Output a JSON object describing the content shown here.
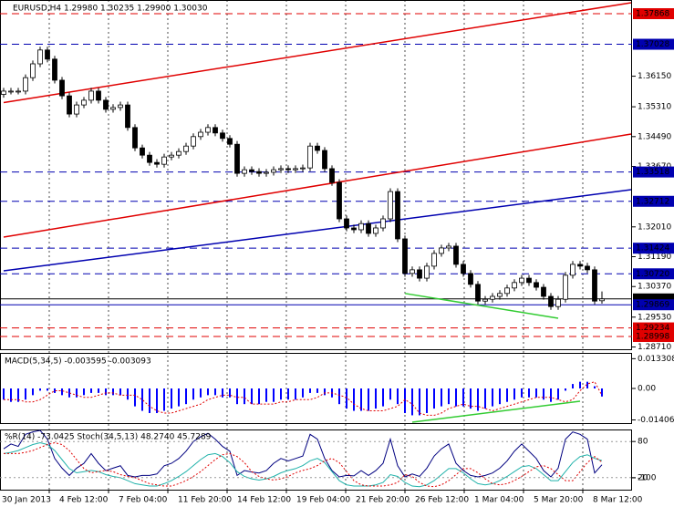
{
  "chart_data": [
    {
      "type": "candlestick",
      "title": "EURUSD,H4  1.29980 1.30235 1.29900 1.30030",
      "bull_color": "#ffffff",
      "bear_color": "#000000",
      "open": [
        1.3565,
        1.3574,
        1.3574,
        1.3574,
        1.3611,
        1.3649,
        1.3687,
        1.3662,
        1.3604,
        1.3561,
        1.3511,
        1.3536,
        1.3549,
        1.3574,
        1.3549,
        1.3524,
        1.3529,
        1.3536,
        1.3474,
        1.3418,
        1.3398,
        1.3378,
        1.3373,
        1.3393,
        1.3398,
        1.3408,
        1.3423,
        1.3449,
        1.3461,
        1.3474,
        1.3459,
        1.3444,
        1.3428,
        1.3348,
        1.3358,
        1.3353,
        1.3348,
        1.3351,
        1.3358,
        1.3361,
        1.3358,
        1.3361,
        1.3363,
        1.3423,
        1.3411,
        1.3361,
        1.3323,
        1.3223,
        1.3198,
        1.3193,
        1.321,
        1.3183,
        1.3198,
        1.3223,
        1.3298,
        1.3168,
        1.3073,
        1.3083,
        1.306,
        1.3093,
        1.3128,
        1.3143,
        1.3148,
        1.3098,
        1.3073,
        1.3043,
        1.2997,
        1.3002,
        1.301,
        1.3018,
        1.3033,
        1.3048,
        1.306,
        1.3048,
        1.3035,
        1.301,
        1.2982,
        1.3002,
        1.3068,
        1.3098,
        1.3093,
        1.3083,
        1.2998
      ],
      "high": [
        1.3583,
        1.3583,
        1.3583,
        1.362,
        1.3658,
        1.3696,
        1.3696,
        1.3671,
        1.3613,
        1.357,
        1.3545,
        1.3558,
        1.3583,
        1.3583,
        1.3558,
        1.3538,
        1.3545,
        1.3545,
        1.3483,
        1.3427,
        1.3407,
        1.3387,
        1.3402,
        1.3407,
        1.3417,
        1.3432,
        1.3458,
        1.347,
        1.3483,
        1.3483,
        1.3468,
        1.3453,
        1.3437,
        1.3367,
        1.3367,
        1.3362,
        1.336,
        1.3367,
        1.337,
        1.337,
        1.337,
        1.3372,
        1.3432,
        1.3432,
        1.342,
        1.337,
        1.3332,
        1.3232,
        1.3207,
        1.3219,
        1.3219,
        1.3207,
        1.3232,
        1.3307,
        1.3307,
        1.3177,
        1.3092,
        1.3092,
        1.3102,
        1.3137,
        1.3152,
        1.3157,
        1.3157,
        1.3107,
        1.3082,
        1.3052,
        1.3011,
        1.3019,
        1.3027,
        1.3042,
        1.3057,
        1.3069,
        1.3069,
        1.3057,
        1.3044,
        1.3019,
        1.3011,
        1.3077,
        1.3107,
        1.3107,
        1.3102,
        1.3092,
        1.30235
      ],
      "low": [
        1.3556,
        1.3565,
        1.3565,
        1.3565,
        1.3602,
        1.364,
        1.3653,
        1.3595,
        1.3552,
        1.3502,
        1.3502,
        1.3527,
        1.354,
        1.354,
        1.3515,
        1.3515,
        1.352,
        1.3465,
        1.3409,
        1.3389,
        1.3369,
        1.3364,
        1.3364,
        1.3384,
        1.3389,
        1.3399,
        1.3414,
        1.344,
        1.3452,
        1.345,
        1.3435,
        1.3419,
        1.3339,
        1.3339,
        1.3344,
        1.3339,
        1.3339,
        1.3342,
        1.3349,
        1.3349,
        1.3349,
        1.3352,
        1.3354,
        1.3402,
        1.3352,
        1.3314,
        1.3214,
        1.3189,
        1.3184,
        1.3184,
        1.3174,
        1.3174,
        1.3189,
        1.3214,
        1.3159,
        1.3064,
        1.3064,
        1.3051,
        1.3051,
        1.3084,
        1.3119,
        1.3134,
        1.3089,
        1.3064,
        1.3034,
        1.2988,
        1.2988,
        1.2993,
        1.3001,
        1.3009,
        1.3024,
        1.3039,
        1.3039,
        1.3026,
        1.3001,
        1.2973,
        1.2973,
        1.2993,
        1.3059,
        1.3084,
        1.3074,
        1.2988,
        1.299
      ],
      "close": [
        1.3574,
        1.3574,
        1.3574,
        1.3611,
        1.3649,
        1.3687,
        1.3662,
        1.3604,
        1.3561,
        1.3511,
        1.3536,
        1.3549,
        1.3574,
        1.3549,
        1.3524,
        1.3529,
        1.3536,
        1.3474,
        1.3418,
        1.3398,
        1.3378,
        1.3373,
        1.3393,
        1.3398,
        1.3408,
        1.3423,
        1.3449,
        1.3461,
        1.3474,
        1.3459,
        1.3444,
        1.3428,
        1.3348,
        1.3358,
        1.3353,
        1.3348,
        1.3351,
        1.3358,
        1.3361,
        1.3358,
        1.3361,
        1.3363,
        1.3423,
        1.3411,
        1.3361,
        1.3323,
        1.3223,
        1.3198,
        1.3193,
        1.321,
        1.3183,
        1.3198,
        1.3223,
        1.3298,
        1.3168,
        1.3073,
        1.3083,
        1.306,
        1.3093,
        1.3128,
        1.3143,
        1.3148,
        1.3098,
        1.3073,
        1.3043,
        1.2997,
        1.3002,
        1.301,
        1.3018,
        1.3033,
        1.3048,
        1.306,
        1.3048,
        1.3035,
        1.301,
        1.2982,
        1.3002,
        1.3068,
        1.3098,
        1.3093,
        1.3083,
        1.2997,
        1.3003
      ],
      "ylim": [
        1.28647,
        1.38244
      ],
      "yticks": [
        {
          "value": 1.3615,
          "label": "1.36150"
        },
        {
          "value": 1.3531,
          "label": "1.35310"
        },
        {
          "value": 1.3449,
          "label": "1.34490"
        },
        {
          "value": 1.3367,
          "label": "1.33670"
        },
        {
          "value": 1.3201,
          "label": "1.32010"
        },
        {
          "value": 1.3119,
          "label": "1.31190"
        },
        {
          "value": 1.3037,
          "label": "1.30370"
        },
        {
          "value": 1.2953,
          "label": "1.29530"
        },
        {
          "value": 1.2871,
          "label": "1.28710"
        }
      ],
      "levels": [
        {
          "value": 1.37868,
          "color": "#e00000",
          "style": "dashed"
        },
        {
          "value": 1.37028,
          "color": "#0000b0",
          "style": "dashed"
        },
        {
          "value": 1.33518,
          "color": "#0000b0",
          "style": "dashed"
        },
        {
          "value": 1.32712,
          "color": "#0000b0",
          "style": "dashed"
        },
        {
          "value": 1.31424,
          "color": "#0000b0",
          "style": "dashed"
        },
        {
          "value": {
            "value": 1.3072,
            "label": "1.30720"
          },
          "color": "#0000b0",
          "style": "dashed"
        },
        {
          "value": {
            "value": 1.3003,
            "label": "1.30030"
          },
          "color": "#000000",
          "style": "solid"
        },
        {
          "value": 1.29869,
          "color": "#0000b0",
          "style": "solid"
        },
        {
          "value": 1.29234,
          "color": "#e00000",
          "style": "dashed"
        },
        {
          "value": 1.28998,
          "color": "#e00000",
          "style": "dashed"
        }
      ],
      "trendlines": [
        {
          "x": [
            0,
            86
          ],
          "y": [
            1.35425,
            1.38169
          ],
          "color": "#e00000"
        },
        {
          "x": [
            0,
            86
          ],
          "y": [
            1.31728,
            1.3456
          ],
          "color": "#e00000"
        },
        {
          "x": [
            0,
            86
          ],
          "y": [
            1.30801,
            1.33031
          ],
          "color": "#0000b0"
        },
        {
          "x": [
            55,
            76
          ],
          "y": [
            1.3018,
            1.295
          ],
          "color": "#33cc33"
        }
      ]
    },
    {
      "type": "macd",
      "title": "MACD(5,34,5) -0.003595 -0.003093",
      "color": "#0000ff",
      "signal_color": "#e00000",
      "values": [
        -0.005,
        -0.006,
        -0.006,
        -0.005,
        -0.003,
        -0.001,
        -0.001,
        -0.002,
        -0.003,
        -0.004,
        -0.004,
        -0.003,
        -0.002,
        -0.002,
        -0.003,
        -0.003,
        -0.003,
        -0.005,
        -0.008,
        -0.01,
        -0.011,
        -0.011,
        -0.01,
        -0.009,
        -0.008,
        -0.007,
        -0.005,
        -0.004,
        -0.003,
        -0.003,
        -0.004,
        -0.004,
        -0.007,
        -0.007,
        -0.007,
        -0.007,
        -0.006,
        -0.006,
        -0.005,
        -0.005,
        -0.005,
        -0.004,
        -0.002,
        -0.002,
        -0.003,
        -0.004,
        -0.007,
        -0.009,
        -0.01,
        -0.01,
        -0.01,
        -0.009,
        -0.008,
        -0.005,
        -0.007,
        -0.011,
        -0.012,
        -0.012,
        -0.011,
        -0.009,
        -0.008,
        -0.007,
        -0.008,
        -0.008,
        -0.009,
        -0.01,
        -0.009,
        -0.008,
        -0.007,
        -0.006,
        -0.005,
        -0.004,
        -0.004,
        -0.004,
        -0.005,
        -0.006,
        -0.005,
        -0.001,
        0.002,
        0.003,
        0.003,
        0.001,
        -0.003595
      ],
      "signal": [
        -0.005,
        -0.005,
        -0.005,
        -0.006,
        -0.006,
        -0.005,
        -0.003,
        -0.001,
        -0.001,
        -0.002,
        -0.003,
        -0.004,
        -0.004,
        -0.003,
        -0.002,
        -0.002,
        -0.003,
        -0.003,
        -0.003,
        -0.005,
        -0.008,
        -0.01,
        -0.011,
        -0.011,
        -0.01,
        -0.009,
        -0.008,
        -0.007,
        -0.005,
        -0.004,
        -0.003,
        -0.003,
        -0.004,
        -0.004,
        -0.007,
        -0.007,
        -0.007,
        -0.007,
        -0.006,
        -0.006,
        -0.005,
        -0.005,
        -0.005,
        -0.004,
        -0.002,
        -0.002,
        -0.003,
        -0.004,
        -0.007,
        -0.009,
        -0.01,
        -0.01,
        -0.01,
        -0.009,
        -0.008,
        -0.005,
        -0.007,
        -0.011,
        -0.012,
        -0.012,
        -0.011,
        -0.009,
        -0.008,
        -0.007,
        -0.008,
        -0.008,
        -0.009,
        -0.01,
        -0.009,
        -0.008,
        -0.007,
        -0.006,
        -0.005,
        -0.004,
        -0.004,
        -0.004,
        -0.005,
        -0.006,
        -0.005,
        -0.001,
        0.002,
        0.003,
        -0.003093
      ],
      "ylim": [
        -0.0159,
        0.0159
      ],
      "yticks": [
        0.013308,
        {
          "value": 0,
          "label": "0.00"
        },
        -0.014065
      ],
      "trendlines": [
        {
          "x": [
            56,
            79
          ],
          "y": [
            -0.0151,
            -0.0057
          ],
          "color": "#33cc33"
        }
      ]
    },
    {
      "type": "oscillator",
      "title": "%R(14) -73.0425 Stoch(34,5,13) 48.2740 45.7289",
      "series": [
        {
          "color": "#000080",
          "axis": "y2",
          "values": [
            -40,
            -30,
            -35,
            -10,
            -5,
            -2,
            -20,
            -60,
            -80,
            -95,
            -80,
            -70,
            -50,
            -70,
            -85,
            -80,
            -75,
            -95,
            -98,
            -95,
            -95,
            -92,
            -75,
            -70,
            -60,
            -45,
            -25,
            -15,
            -8,
            -20,
            -35,
            -45,
            -95,
            -85,
            -88,
            -90,
            -85,
            -70,
            -60,
            -65,
            -60,
            -55,
            -10,
            -20,
            -60,
            -85,
            -98,
            -95,
            -96,
            -85,
            -95,
            -85,
            -70,
            -20,
            -75,
            -98,
            -92,
            -97,
            -80,
            -55,
            -40,
            -30,
            -70,
            -85,
            -95,
            -98,
            -95,
            -90,
            -80,
            -65,
            -45,
            -30,
            -45,
            -60,
            -85,
            -98,
            -80,
            -20,
            -5,
            -10,
            -20,
            -90,
            -73.0425
          ]
        },
        {
          "color": "#20b2aa",
          "values": [
            60,
            62,
            65,
            70,
            75,
            78,
            75,
            65,
            50,
            35,
            28,
            30,
            32,
            30,
            25,
            22,
            20,
            15,
            10,
            8,
            6,
            6,
            10,
            15,
            22,
            30,
            40,
            50,
            58,
            60,
            55,
            45,
            30,
            22,
            18,
            16,
            18,
            22,
            28,
            32,
            35,
            40,
            48,
            52,
            45,
            30,
            15,
            8,
            6,
            6,
            6,
            8,
            12,
            25,
            22,
            12,
            6,
            5,
            8,
            15,
            25,
            35,
            35,
            28,
            18,
            10,
            8,
            10,
            15,
            22,
            30,
            38,
            40,
            35,
            25,
            15,
            15,
            30,
            45,
            55,
            58,
            52,
            48.274
          ]
        },
        {
          "color": "#e00000",
          "dashed": true,
          "values": [
            60,
            60,
            60,
            62,
            65,
            70,
            75,
            78,
            75,
            65,
            50,
            35,
            28,
            30,
            32,
            30,
            25,
            22,
            20,
            15,
            10,
            8,
            6,
            6,
            10,
            15,
            22,
            30,
            40,
            50,
            58,
            60,
            55,
            45,
            30,
            22,
            18,
            16,
            18,
            22,
            28,
            32,
            35,
            40,
            48,
            52,
            45,
            30,
            15,
            8,
            6,
            6,
            6,
            8,
            12,
            25,
            22,
            12,
            6,
            5,
            8,
            15,
            25,
            35,
            35,
            28,
            18,
            10,
            8,
            10,
            15,
            22,
            30,
            38,
            40,
            35,
            25,
            15,
            15,
            30,
            45,
            55,
            45.7289
          ]
        }
      ],
      "ylim": [
        0,
        100
      ],
      "yticks": [
        80,
        20
      ],
      "y2lim": [
        -124.5,
        0
      ],
      "y2ticks": [
        -100
      ],
      "x_labels": [
        "30 Jan 2013",
        "4 Feb 12:00",
        "7 Feb 04:00",
        "11 Feb 20:00",
        "14 Feb 12:00",
        "19 Feb 04:00",
        "21 Feb 20:00",
        "26 Feb 12:00",
        "1 Mar 04:00",
        "5 Mar 20:00",
        "8 Mar 12:00"
      ]
    }
  ]
}
